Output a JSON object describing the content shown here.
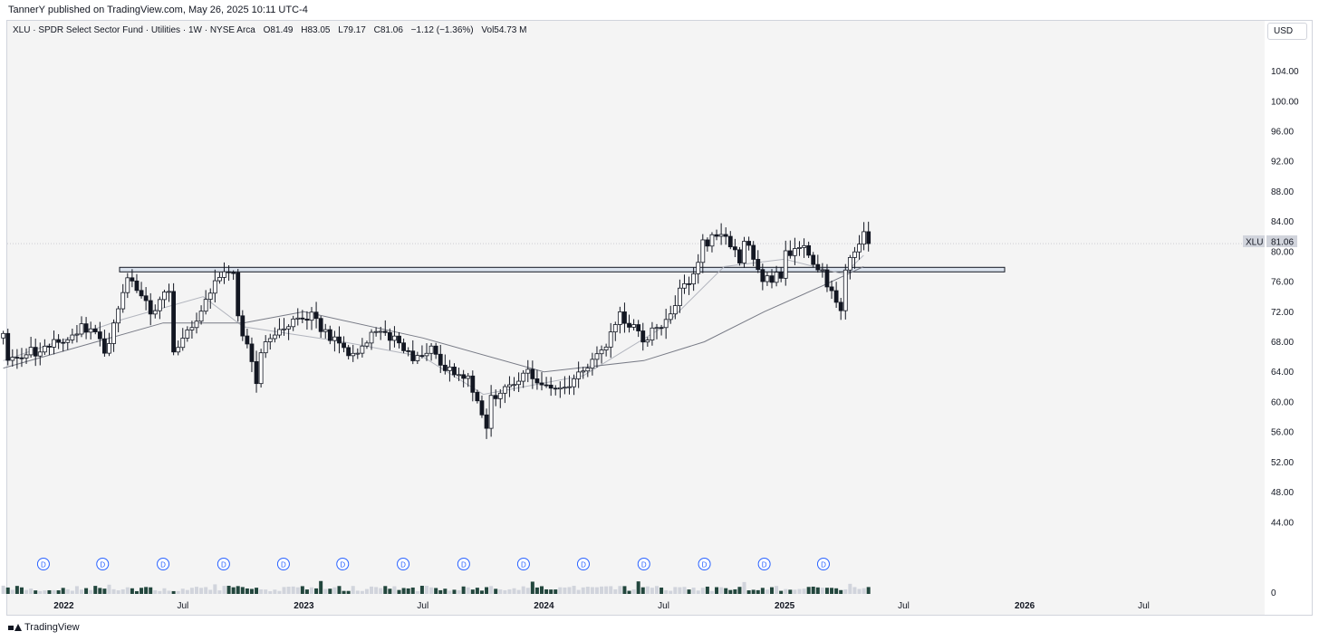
{
  "header": {
    "credit": "TannerY published on TradingView.com, May 26, 2025 10:11 UTC-4"
  },
  "legend": {
    "symbol": "XLU · SPDR Select Sector Fund · Utilities · 1W · NYSE Arca",
    "open": "O81.49",
    "high": "H83.05",
    "low": "L79.17",
    "close": "C81.06",
    "change": "−1.12 (−1.36%)",
    "volume": "Vol54.73 M"
  },
  "currency_button": "USD",
  "price_tag": {
    "ticker": "XLU",
    "value": "81.06"
  },
  "volume_axis_label": "0",
  "dividend_marker_label": "D",
  "footer": {
    "brand": "TradingView"
  },
  "colors": {
    "up": "#ffffff",
    "down": "#131722",
    "wick": "#131722",
    "level_band": "#dbe3ee",
    "ma_fast": "#b2b5be",
    "ma_slow": "#787b86",
    "dividend": "#2962ff"
  },
  "chart_data": {
    "type": "candlestick",
    "title": "XLU · SPDR Select Sector Fund · Utilities · 1W · NYSE Arca",
    "y_ticks": [
      104,
      100,
      96,
      92,
      88,
      84,
      80,
      76,
      72,
      68,
      64,
      60,
      56,
      52,
      48,
      44
    ],
    "ylim": [
      40.6,
      106.6
    ],
    "x_ticks": [
      "2022",
      "Jul",
      "2023",
      "Jul",
      "2024",
      "Jul",
      "2025",
      "Jul",
      "2026",
      "Jul"
    ],
    "x_tick_dates": [
      "2022-01",
      "2022-07",
      "2023-01",
      "2023-07",
      "2024-01",
      "2024-07",
      "2025-01",
      "2025-07",
      "2026-01",
      "2026-07"
    ],
    "horizontal_level": {
      "low": 77.3,
      "high": 77.9
    },
    "dividend_markers": [
      "2021-12",
      "2022-03",
      "2022-06",
      "2022-09",
      "2022-12",
      "2023-03",
      "2023-06",
      "2023-09",
      "2023-12",
      "2024-03",
      "2024-06",
      "2024-09",
      "2024-12",
      "2025-03"
    ],
    "series": [
      {
        "name": "XLU",
        "kind": "weekly_close_path",
        "anchors": [
          [
            "2021-10",
            68.5
          ],
          [
            "2021-10",
            65
          ],
          [
            "2021-11",
            66.5
          ],
          [
            "2021-12",
            67
          ],
          [
            "2022-01",
            68.5
          ],
          [
            "2022-02",
            70
          ],
          [
            "2022-03",
            69
          ],
          [
            "2022-03",
            66
          ],
          [
            "2022-04",
            74
          ],
          [
            "2022-04",
            76.5
          ],
          [
            "2022-05",
            73
          ],
          [
            "2022-05",
            72
          ],
          [
            "2022-06",
            75
          ],
          [
            "2022-06",
            67
          ],
          [
            "2022-07",
            70
          ],
          [
            "2022-07",
            70.5
          ],
          [
            "2022-08",
            76
          ],
          [
            "2022-09",
            77.5
          ],
          [
            "2022-09",
            71.5
          ],
          [
            "2022-10",
            63
          ],
          [
            "2022-10",
            67
          ],
          [
            "2022-11",
            69
          ],
          [
            "2022-12",
            71
          ],
          [
            "2023-01",
            71.5
          ],
          [
            "2023-01",
            69.5
          ],
          [
            "2023-02",
            67.5
          ],
          [
            "2023-03",
            66
          ],
          [
            "2023-04",
            69.5
          ],
          [
            "2023-05",
            68.5
          ],
          [
            "2023-06",
            66
          ],
          [
            "2023-07",
            67
          ],
          [
            "2023-08",
            64
          ],
          [
            "2023-09",
            63
          ],
          [
            "2023-10",
            57
          ],
          [
            "2023-10",
            60.5
          ],
          [
            "2023-11",
            62
          ],
          [
            "2023-12",
            64
          ],
          [
            "2024-01",
            62
          ],
          [
            "2024-02",
            61.5
          ],
          [
            "2024-03",
            64
          ],
          [
            "2024-04",
            66.5
          ],
          [
            "2024-05",
            71.5
          ],
          [
            "2024-06",
            69.5
          ],
          [
            "2024-06",
            68.5
          ],
          [
            "2024-07",
            70
          ],
          [
            "2024-08",
            74.5
          ],
          [
            "2024-09",
            78
          ],
          [
            "2024-09",
            81
          ],
          [
            "2024-10",
            82.5
          ],
          [
            "2024-11",
            79
          ],
          [
            "2024-11",
            82
          ],
          [
            "2024-12",
            76
          ],
          [
            "2025-01",
            77
          ],
          [
            "2025-01",
            79.5
          ],
          [
            "2025-02",
            80.5
          ],
          [
            "2025-03",
            77
          ],
          [
            "2025-04",
            72
          ],
          [
            "2025-04",
            77.5
          ],
          [
            "2025-05",
            82
          ],
          [
            "2025-05",
            81.06
          ]
        ]
      },
      {
        "name": "MA fast",
        "kind": "moving_average",
        "anchors": [
          [
            "2021-10",
            65.5
          ],
          [
            "2022-04",
            71
          ],
          [
            "2022-08",
            74
          ],
          [
            "2022-10",
            70
          ],
          [
            "2023-03",
            68
          ],
          [
            "2023-07",
            66
          ],
          [
            "2023-10",
            61
          ],
          [
            "2024-03",
            63.5
          ],
          [
            "2024-07",
            70
          ],
          [
            "2024-10",
            78
          ],
          [
            "2025-01",
            79
          ],
          [
            "2025-04",
            77
          ],
          [
            "2025-05",
            79.5
          ]
        ]
      },
      {
        "name": "MA slow",
        "kind": "moving_average",
        "anchors": [
          [
            "2021-10",
            64.5
          ],
          [
            "2022-06",
            70.5
          ],
          [
            "2022-10",
            70.5
          ],
          [
            "2023-01",
            72
          ],
          [
            "2023-07",
            68.5
          ],
          [
            "2024-01",
            64
          ],
          [
            "2024-06",
            65.5
          ],
          [
            "2024-09",
            68
          ],
          [
            "2024-12",
            72
          ],
          [
            "2025-03",
            75.5
          ],
          [
            "2025-05",
            78
          ]
        ]
      }
    ]
  }
}
